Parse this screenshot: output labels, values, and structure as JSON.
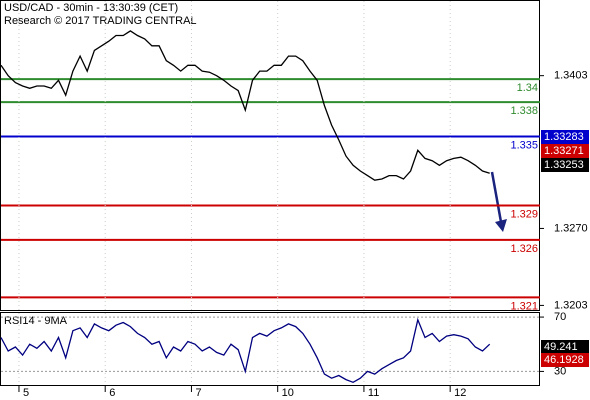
{
  "chart_data": [
    {
      "type": "line",
      "title": "USD/CAD - 30min - 13:30:39 (CET)",
      "subtitle": "Research © 2017 TRADING CENTRAL",
      "xlim": [
        0,
        75
      ],
      "xticks": [
        {
          "value": 2.5,
          "label": "5"
        },
        {
          "value": 14.5,
          "label": "6"
        },
        {
          "value": 26.5,
          "label": "7"
        },
        {
          "value": 38.5,
          "label": "10"
        },
        {
          "value": 50.5,
          "label": "11"
        },
        {
          "value": 62.5,
          "label": "12"
        }
      ],
      "x": [
        0,
        1,
        2,
        3,
        4,
        5,
        6,
        7,
        8,
        9,
        10,
        11,
        12,
        13,
        14,
        15,
        16,
        17,
        18,
        19,
        20,
        21,
        22,
        23,
        24,
        25,
        26,
        27,
        28,
        29,
        30,
        31,
        32,
        33,
        34,
        35,
        36,
        37,
        38,
        39,
        40,
        41,
        42,
        43,
        44,
        45,
        46,
        47,
        48,
        49,
        50,
        51,
        52,
        53,
        54,
        55,
        56,
        57,
        58,
        59,
        60,
        61,
        62,
        63,
        64,
        65,
        66,
        67,
        68
      ],
      "series": [
        {
          "color": "#000000",
          "values": [
            1.3412,
            1.3403,
            1.3397,
            1.3394,
            1.3392,
            1.3394,
            1.3394,
            1.3392,
            1.3399,
            1.3386,
            1.3407,
            1.342,
            1.3407,
            1.3425,
            1.3429,
            1.3433,
            1.3438,
            1.3438,
            1.3442,
            1.3438,
            1.3435,
            1.3429,
            1.3429,
            1.3416,
            1.3412,
            1.3407,
            1.3412,
            1.3412,
            1.3407,
            1.3406,
            1.3403,
            1.3399,
            1.3394,
            1.339,
            1.3373,
            1.3399,
            1.3407,
            1.3407,
            1.3412,
            1.3412,
            1.342,
            1.342,
            1.3416,
            1.3407,
            1.3399,
            1.3377,
            1.336,
            1.3347,
            1.3333,
            1.3325,
            1.332,
            1.3316,
            1.3312,
            1.3313,
            1.3316,
            1.3316,
            1.3313,
            1.332,
            1.3338,
            1.3331,
            1.3329,
            1.3325,
            1.3329,
            1.3331,
            1.3332,
            1.3329,
            1.3325,
            1.332,
            1.3318
          ]
        }
      ],
      "ylim": [
        1.3199,
        1.3468
      ],
      "yticks": [
        1.3403,
        {
          "value": 1.327,
          "label": "1.3270"
        },
        1.3203
      ],
      "levels": [
        {
          "value": 1.34,
          "color": "#2e8b2e"
        },
        {
          "value": 1.338,
          "color": "#2e8b2e"
        },
        {
          "value": 1.335,
          "color": "#0000cc"
        },
        {
          "value": 1.329,
          "color": "#cc0000"
        },
        {
          "value": 1.326,
          "color": "#cc0000"
        },
        {
          "value": 1.321,
          "color": "#cc0000"
        }
      ],
      "price_labels": [
        {
          "value": 1.33283,
          "color": "#0000cc"
        },
        {
          "value": 1.33271,
          "color": "#cc0000"
        },
        {
          "value": 1.33253,
          "color": "#000000"
        }
      ]
    },
    {
      "type": "line",
      "title": "RSI14 - 9MA",
      "x": [
        0,
        1,
        2,
        3,
        4,
        5,
        6,
        7,
        8,
        9,
        10,
        11,
        12,
        13,
        14,
        15,
        16,
        17,
        18,
        19,
        20,
        21,
        22,
        23,
        24,
        25,
        26,
        27,
        28,
        29,
        30,
        31,
        32,
        33,
        34,
        35,
        36,
        37,
        38,
        39,
        40,
        41,
        42,
        43,
        44,
        45,
        46,
        47,
        48,
        49,
        50,
        51,
        52,
        53,
        54,
        55,
        56,
        57,
        58,
        59,
        60,
        61,
        62,
        63,
        64,
        65,
        66,
        67,
        68
      ],
      "xlim": [
        0,
        75
      ],
      "series": [
        {
          "color": "#000080",
          "values": [
            55,
            45,
            48,
            42,
            50,
            47,
            52,
            45,
            55,
            40,
            60,
            62,
            55,
            65,
            62,
            60,
            64,
            66,
            63,
            58,
            55,
            50,
            52,
            40,
            48,
            45,
            52,
            50,
            45,
            48,
            44,
            42,
            50,
            46,
            30,
            55,
            58,
            56,
            60,
            62,
            65,
            63,
            58,
            50,
            40,
            28,
            25,
            27,
            24,
            22,
            25,
            30,
            28,
            32,
            35,
            38,
            40,
            45,
            68,
            55,
            58,
            52,
            56,
            57,
            56,
            54,
            48,
            45,
            50
          ]
        }
      ],
      "ylim": [
        20,
        73
      ],
      "yticks": [
        70,
        30
      ],
      "price_labels": [
        {
          "value": 49.241,
          "color": "#000000"
        },
        {
          "value": 46.1928,
          "color": "#cc0000"
        }
      ]
    }
  ]
}
